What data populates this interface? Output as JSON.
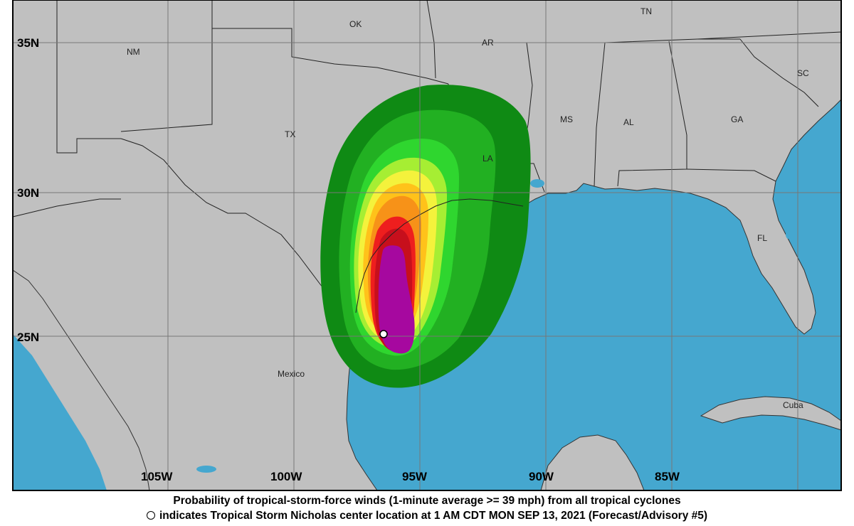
{
  "map": {
    "latitude_labels": [
      "35N",
      "30N",
      "25N"
    ],
    "longitude_labels": [
      "105W",
      "100W",
      "95W",
      "90W",
      "85W"
    ],
    "region_labels": [
      "NM",
      "OK",
      "AR",
      "TN",
      "SC",
      "TX",
      "MS",
      "AL",
      "GA",
      "LA",
      "FL",
      "Mexico",
      "Cuba"
    ],
    "colors": {
      "land": "#c0c0c0",
      "water": "#45a7cf",
      "prob_5_10": "#0f8a14",
      "prob_10_20": "#22b022",
      "prob_20_30": "#2fd62f",
      "prob_30_40": "#a6ee33",
      "prob_40_50": "#f4f23c",
      "prob_50_60": "#ffc21a",
      "prob_60_70": "#f79218",
      "prob_70_80": "#ee1e1e",
      "prob_80_90": "#c70f1c",
      "prob_90_100": "#a6089f"
    },
    "storm_center_marker": "open-circle"
  },
  "caption": {
    "line1": "Probability of tropical-storm-force winds (1-minute average >= 39 mph) from all tropical cyclones",
    "line2": "indicates Tropical Storm Nicholas center location at 1 AM CDT MON SEP 13, 2021 (Forecast/Advisory #5)"
  }
}
